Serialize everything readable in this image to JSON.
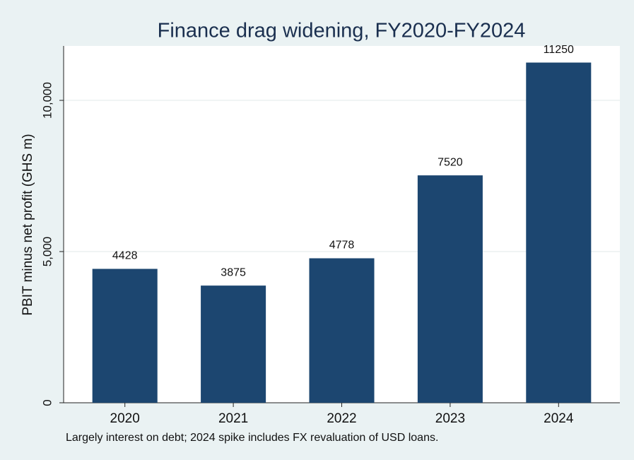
{
  "chart_data": {
    "type": "bar",
    "title": "Finance drag widening, FY2020-FY2024",
    "y_label": "PBIT minus net profit (GHS m)",
    "note": "Largely interest on debt; 2024 spike includes FX revaluation of USD loans.",
    "categories": [
      "2020",
      "2021",
      "2022",
      "2023",
      "2024"
    ],
    "values": [
      4428,
      3875,
      4778,
      7520,
      11250
    ],
    "color": "#1c4670",
    "ylim": [
      0,
      11800
    ],
    "yticks": [
      0,
      {
        "value": 5000,
        "label": "5,000"
      },
      {
        "value": 10000,
        "label": "10,000"
      }
    ],
    "grid": true
  }
}
